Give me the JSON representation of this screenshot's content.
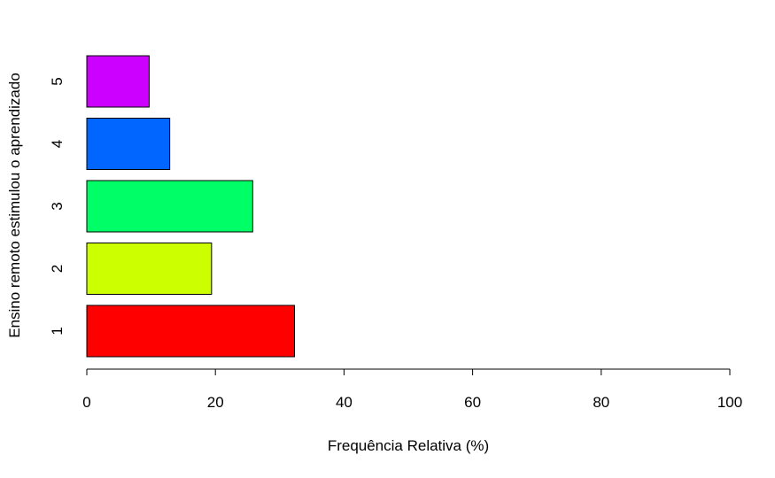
{
  "chart_data": {
    "type": "bar",
    "orientation": "horizontal",
    "categories": [
      "1",
      "2",
      "3",
      "4",
      "5"
    ],
    "values": [
      32.3,
      19.4,
      25.8,
      12.9,
      9.7
    ],
    "colors": [
      "#FF0000",
      "#CCFF00",
      "#00FF66",
      "#0066FF",
      "#CC00FF"
    ],
    "xlabel": "Frequência Relativa (%)",
    "ylabel": "Ensino remoto estimulou o aprendizado",
    "xlim": [
      0,
      100
    ],
    "xticks": [
      "0",
      "20",
      "40",
      "60",
      "80",
      "100"
    ]
  }
}
